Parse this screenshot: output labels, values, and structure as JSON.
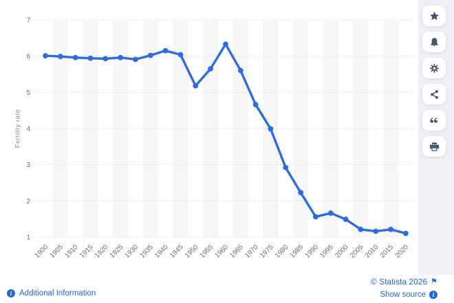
{
  "chart_data": {
    "type": "line",
    "title": "",
    "xlabel": "",
    "ylabel": "Fertility rate",
    "categories": [
      "1900",
      "1905",
      "1910",
      "1915",
      "1920",
      "1925",
      "1930",
      "1935",
      "1940",
      "1945",
      "1950",
      "1955",
      "1960",
      "1965",
      "1970",
      "1975",
      "1980",
      "1985",
      "1990",
      "1995",
      "2000",
      "2005",
      "2010",
      "2015",
      "2020"
    ],
    "series": [
      {
        "name": "Fertility rate",
        "color": "#2d6be1",
        "values": [
          6.01,
          5.99,
          5.96,
          5.94,
          5.93,
          5.96,
          5.91,
          6.02,
          6.15,
          6.04,
          5.18,
          5.65,
          6.33,
          5.6,
          4.66,
          3.99,
          2.92,
          2.23,
          1.56,
          1.66,
          1.49,
          1.21,
          1.16,
          1.21,
          1.1
        ]
      }
    ],
    "ylim": [
      1,
      7
    ],
    "yticks": [
      1,
      2,
      3,
      4,
      5,
      6,
      7
    ],
    "grid": "horizontal-dotted",
    "background_bands": "alternating-vertical-stripes",
    "legend": "none"
  },
  "style": {
    "line_color": "#2d6be1",
    "stripe_color": "#f6f6f8",
    "grid_color": "#d8d8d8",
    "tick_color": "#6e6e6e",
    "axis_title_color": "#8a8a8a",
    "toolbar_bg": "#eef0f5",
    "icon_color": "#44546a",
    "link_color": "#2465e0"
  },
  "toolbar": {
    "buttons": [
      {
        "id": "favorite",
        "icon": "star-icon"
      },
      {
        "id": "notifications",
        "icon": "bell-icon"
      },
      {
        "id": "settings",
        "icon": "gear-icon"
      },
      {
        "id": "share",
        "icon": "share-icon"
      },
      {
        "id": "cite",
        "icon": "quote-icon"
      },
      {
        "id": "print",
        "icon": "printer-icon"
      }
    ]
  },
  "footer": {
    "additional_info_label": "Additional Information",
    "copyright_label": "© Statista 2026",
    "show_source_label": "Show source"
  }
}
